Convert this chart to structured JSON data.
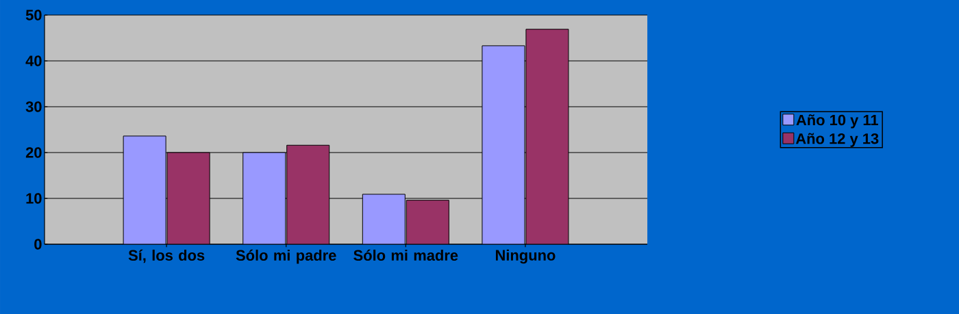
{
  "chart_data": {
    "type": "bar",
    "categories": [
      "Sí, los dos",
      "Sólo mi padre",
      "Sólo mi madre",
      "Ninguno"
    ],
    "series": [
      {
        "name": "Año 10 y 11",
        "color": "#9999ff",
        "values": [
          23.6,
          20,
          10.9,
          43.3
        ]
      },
      {
        "name": "Año 12 y 13",
        "color": "#993366",
        "values": [
          20,
          21.6,
          9.6,
          46.9
        ]
      }
    ],
    "ylim": [
      0,
      50
    ],
    "yticks": [
      0,
      10,
      20,
      30,
      40,
      50
    ],
    "grid": "y",
    "legend": "right"
  }
}
